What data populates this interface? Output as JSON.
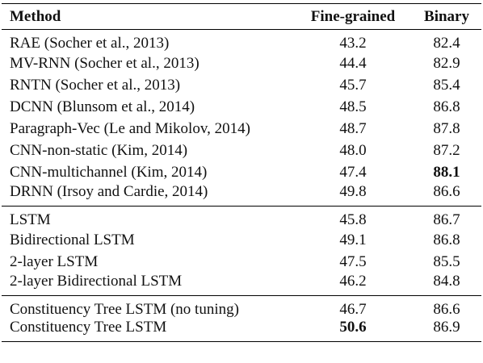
{
  "headers": {
    "method": "Method",
    "fine_grained": "Fine-grained",
    "binary": "Binary"
  },
  "groups": [
    [
      {
        "method": "RAE (Socher et al., 2013)",
        "fine": "43.2",
        "binary": "82.4"
      },
      {
        "method": "MV-RNN (Socher et al., 2013)",
        "fine": "44.4",
        "binary": "82.9"
      },
      {
        "method": "RNTN (Socher et al., 2013)",
        "fine": "45.7",
        "binary": "85.4"
      },
      {
        "method": "DCNN (Blunsom et al., 2014)",
        "fine": "48.5",
        "binary": "86.8"
      },
      {
        "method": "Paragraph-Vec (Le and Mikolov, 2014)",
        "fine": "48.7",
        "binary": "87.8"
      },
      {
        "method": "CNN-non-static (Kim, 2014)",
        "fine": "48.0",
        "binary": "87.2"
      },
      {
        "method": "CNN-multichannel (Kim, 2014)",
        "fine": "47.4",
        "binary": "88.1",
        "binary_bold": true
      },
      {
        "method": "DRNN (Irsoy and Cardie, 2014)",
        "fine": "49.8",
        "binary": "86.6"
      }
    ],
    [
      {
        "method": "LSTM",
        "fine": "45.8",
        "binary": "86.7"
      },
      {
        "method": "Bidirectional LSTM",
        "fine": "49.1",
        "binary": "86.8"
      },
      {
        "method": "2-layer LSTM",
        "fine": "47.5",
        "binary": "85.5"
      },
      {
        "method": "2-layer Bidirectional LSTM",
        "fine": "46.2",
        "binary": "84.8"
      }
    ],
    [
      {
        "method": "Constituency Tree LSTM (no tuning)",
        "fine": "46.7",
        "binary": "86.6"
      },
      {
        "method": "Constituency Tree LSTM",
        "fine": "50.6",
        "binary": "86.9",
        "fine_bold": true
      }
    ]
  ]
}
